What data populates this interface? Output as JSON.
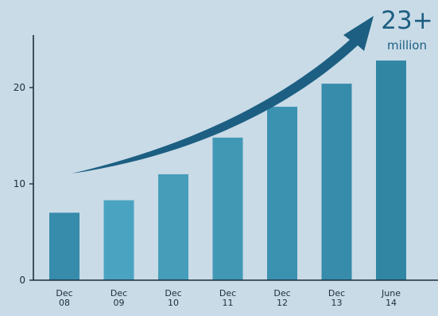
{
  "chart_data": {
    "type": "bar",
    "categories": [
      {
        "line1": "Dec",
        "line2": "08"
      },
      {
        "line1": "Dec",
        "line2": "09"
      },
      {
        "line1": "Dec",
        "line2": "10"
      },
      {
        "line1": "Dec",
        "line2": "11"
      },
      {
        "line1": "Dec",
        "line2": "12"
      },
      {
        "line1": "Dec",
        "line2": "13"
      },
      {
        "line1": "June",
        "line2": "14"
      }
    ],
    "values": [
      7,
      8.3,
      11,
      14.8,
      18,
      20.4,
      22.8
    ],
    "ylim": [
      0,
      25
    ],
    "yticks": [
      "0",
      "10",
      "20"
    ],
    "ytick_values": [
      0,
      10,
      20
    ],
    "annotation": {
      "value": "23+",
      "unit": "million"
    },
    "colors": {
      "background": "#c9dbe7",
      "bar_light": "#4fa9c6",
      "bar_dark": "#1e6f8e",
      "arrow": "#1c5f82",
      "axis": "#1f2d3a",
      "text": "#1f2d3a",
      "annotation": "#1c5f82"
    }
  }
}
